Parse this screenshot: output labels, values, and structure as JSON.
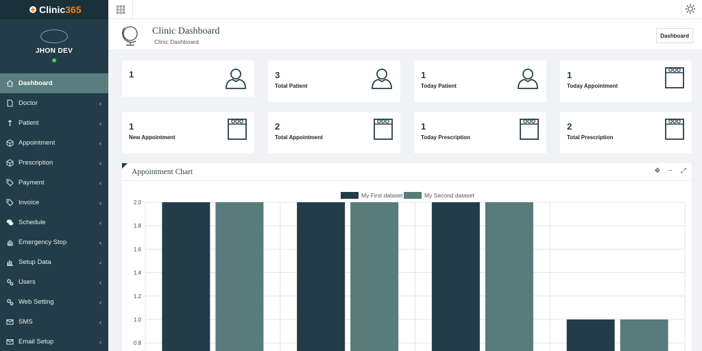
{
  "brand": {
    "name": "Clinic",
    "suffix": "365"
  },
  "user": {
    "name": "JHON DEV"
  },
  "nav": [
    {
      "label": "Dashboard",
      "icon": "home-icon",
      "active": true
    },
    {
      "label": "Doctor",
      "icon": "document-icon"
    },
    {
      "label": "Patient",
      "icon": "pin-icon"
    },
    {
      "label": "Appointment",
      "icon": "cube-icon"
    },
    {
      "label": "Prescription",
      "icon": "cube-icon"
    },
    {
      "label": "Payment",
      "icon": "tag-icon"
    },
    {
      "label": "Invoice",
      "icon": "tag-icon"
    },
    {
      "label": "Schedule",
      "icon": "chat-icon"
    },
    {
      "label": "Emergency Stop",
      "icon": "hand-icon"
    },
    {
      "label": "Setup Data",
      "icon": "bar-chart-icon"
    },
    {
      "label": "Users",
      "icon": "gears-icon"
    },
    {
      "label": "Web Setting",
      "icon": "gears-icon"
    },
    {
      "label": "SMS",
      "icon": "envelope-icon"
    },
    {
      "label": "Email Setup",
      "icon": "envelope-icon"
    }
  ],
  "header": {
    "title": "Clinic Dashboard",
    "subtitle": "Clinic Dashboard",
    "breadcrumb": "Dashboard"
  },
  "cards": [
    {
      "value": "1",
      "label": "",
      "icon": "user-icon"
    },
    {
      "value": "3",
      "label": "Total Patient",
      "icon": "user-icon"
    },
    {
      "value": "1",
      "label": "Today Patient",
      "icon": "user-icon"
    },
    {
      "value": "1",
      "label": "Today Appointment",
      "icon": "calendar-icon"
    },
    {
      "value": "1",
      "label": "New Appointment",
      "icon": "calendar-icon"
    },
    {
      "value": "2",
      "label": "Total Appointment",
      "icon": "calendar-icon"
    },
    {
      "value": "1",
      "label": "Today Prescription",
      "icon": "calendar-icon"
    },
    {
      "value": "2",
      "label": "Total Prescription",
      "icon": "calendar-icon"
    }
  ],
  "panel": {
    "title": "Appointment Chart"
  },
  "chart_data": {
    "type": "bar",
    "categories": [
      "",
      "",
      "",
      ""
    ],
    "series": [
      {
        "name": "My First dataset",
        "color": "#223d47",
        "values": [
          2,
          2,
          2,
          1
        ]
      },
      {
        "name": "My Second dataset",
        "color": "#587b7c",
        "values": [
          2,
          2,
          2,
          1
        ]
      }
    ],
    "yticks": [
      "2.0",
      "1.8",
      "1.6",
      "1.4",
      "1.2",
      "1.0",
      "0.8"
    ],
    "ylim": [
      0,
      2
    ],
    "legend": "top-center",
    "grid": true
  }
}
